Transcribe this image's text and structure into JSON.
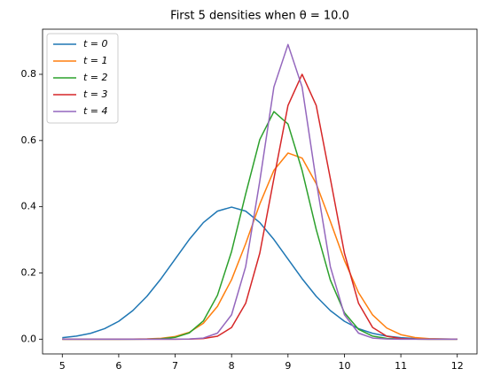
{
  "chart_data": {
    "type": "line",
    "title": "First 5 densities when θ = 10.0",
    "x": [
      5,
      5.25,
      5.5,
      5.75,
      6,
      6.25,
      6.5,
      6.75,
      7,
      7.25,
      7.5,
      7.75,
      8,
      8.25,
      8.5,
      8.75,
      9,
      9.25,
      9.5,
      9.75,
      10,
      10.25,
      10.5,
      10.75,
      11,
      11.25,
      11.5,
      11.75,
      12
    ],
    "series": [
      {
        "name": "t = 0",
        "color": "#1f77b4",
        "values": [
          0.0044,
          0.0091,
          0.0175,
          0.0317,
          0.054,
          0.0863,
          0.1295,
          0.1826,
          0.242,
          0.3011,
          0.3521,
          0.3867,
          0.3989,
          0.3867,
          0.3521,
          0.3011,
          0.242,
          0.1826,
          0.1295,
          0.0863,
          0.054,
          0.0317,
          0.0175,
          0.0091,
          0.0044,
          0.002,
          0.0009,
          0.0004,
          0.0001
        ]
      },
      {
        "name": "t = 1",
        "color": "#ff7f0e",
        "values": [
          0,
          0,
          0,
          0,
          0,
          0.0002,
          0.0008,
          0.0026,
          0.0078,
          0.0206,
          0.048,
          0.099,
          0.1798,
          0.2885,
          0.4082,
          0.51,
          0.5622,
          0.547,
          0.4696,
          0.356,
          0.2379,
          0.1405,
          0.0731,
          0.0336,
          0.0136,
          0.0049,
          0.0015,
          0.0004,
          0.0001
        ]
      },
      {
        "name": "t = 2",
        "color": "#2ca02c",
        "values": [
          0,
          0,
          0,
          0,
          0,
          0,
          0.0003,
          0.0013,
          0.0054,
          0.0189,
          0.055,
          0.1326,
          0.2648,
          0.4388,
          0.6031,
          0.6874,
          0.6499,
          0.5096,
          0.3313,
          0.1787,
          0.0799,
          0.0297,
          0.0091,
          0.0023,
          0.0005,
          0.0001,
          0,
          0,
          0
        ]
      },
      {
        "name": "t = 3",
        "color": "#d62728",
        "values": [
          0,
          0,
          0,
          0,
          0,
          0,
          0,
          0,
          0,
          0.0003,
          0.0018,
          0.0089,
          0.0352,
          0.1083,
          0.2598,
          0.4852,
          0.706,
          0.8,
          0.706,
          0.4852,
          0.2598,
          0.1083,
          0.0352,
          0.0089,
          0.0018,
          0.0003,
          0,
          0,
          0
        ]
      },
      {
        "name": "t = 4",
        "color": "#9467bd",
        "values": [
          0,
          0,
          0,
          0,
          0,
          0,
          0,
          0,
          0,
          0.0004,
          0.0033,
          0.0182,
          0.0737,
          0.2192,
          0.4775,
          0.7617,
          0.89,
          0.7617,
          0.4775,
          0.2192,
          0.0737,
          0.0182,
          0.0033,
          0.0004,
          0,
          0,
          0,
          0,
          0
        ]
      }
    ],
    "xlim": [
      4.65,
      12.35
    ],
    "xticks": [
      5,
      6,
      7,
      8,
      9,
      10,
      11,
      12
    ],
    "ylim": [
      -0.0446,
      0.9363
    ],
    "yticks": [
      {
        "value": 0,
        "label": "0.0"
      },
      0.2,
      0.4,
      0.6,
      0.8
    ],
    "grid": false,
    "legend": "upper-left"
  }
}
